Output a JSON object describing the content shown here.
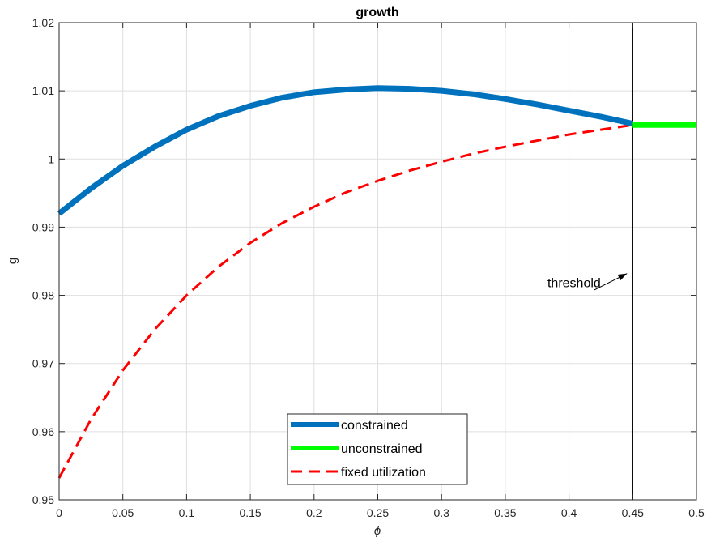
{
  "chart_data": {
    "type": "line",
    "title": "growth",
    "xlabel": "ϕ",
    "ylabel": "g",
    "xlim": [
      0,
      0.5
    ],
    "ylim": [
      0.95,
      1.02
    ],
    "xticks": [
      0,
      0.05,
      0.1,
      0.15,
      0.2,
      0.25,
      0.3,
      0.35,
      0.4,
      0.45,
      0.5
    ],
    "xtick_labels": [
      "0",
      "0.05",
      "0.1",
      "0.15",
      "0.2",
      "0.25",
      "0.3",
      "0.35",
      "0.4",
      "0.45",
      "0.5"
    ],
    "yticks": [
      0.95,
      0.96,
      0.97,
      0.98,
      0.99,
      1.0,
      1.01,
      1.02
    ],
    "ytick_labels": [
      "0.95",
      "0.96",
      "0.97",
      "0.98",
      "0.99",
      "1",
      "1.01",
      "1.02"
    ],
    "grid": true,
    "legend_position": "bottom-center",
    "series": [
      {
        "name": "constrained",
        "color": "#0072BD",
        "style": "solid-thick",
        "x": [
          0,
          0.025,
          0.05,
          0.075,
          0.1,
          0.125,
          0.15,
          0.175,
          0.2,
          0.225,
          0.25,
          0.275,
          0.3,
          0.325,
          0.35,
          0.375,
          0.4,
          0.425,
          0.45
        ],
        "y": [
          0.992,
          0.9957,
          0.999,
          1.0018,
          1.0043,
          1.0063,
          1.0078,
          1.009,
          1.0098,
          1.0102,
          1.0104,
          1.0103,
          1.01,
          1.0095,
          1.0088,
          1.008,
          1.0071,
          1.0062,
          1.0052
        ]
      },
      {
        "name": "unconstrained",
        "color": "#00FF00",
        "style": "solid-thick",
        "x": [
          0.45,
          0.5
        ],
        "y": [
          1.005,
          1.005
        ]
      },
      {
        "name": "fixed utilization",
        "color": "#FF0000",
        "style": "dashed",
        "x": [
          0,
          0.025,
          0.05,
          0.075,
          0.1,
          0.125,
          0.15,
          0.175,
          0.2,
          0.225,
          0.25,
          0.275,
          0.3,
          0.325,
          0.35,
          0.375,
          0.4,
          0.425,
          0.45
        ],
        "y": [
          0.9532,
          0.9618,
          0.969,
          0.975,
          0.98,
          0.9842,
          0.9877,
          0.9906,
          0.993,
          0.9951,
          0.9968,
          0.9983,
          0.9996,
          1.0008,
          1.0018,
          1.0027,
          1.0036,
          1.0043,
          1.005
        ]
      }
    ],
    "vline": {
      "x": 0.45,
      "color": "#000000"
    },
    "annotation": {
      "text": "threshold",
      "text_at": [
        0.404,
        0.9812
      ],
      "arrow_from": [
        0.42,
        0.9808
      ],
      "arrow_to": [
        0.4455,
        0.9832
      ]
    }
  }
}
